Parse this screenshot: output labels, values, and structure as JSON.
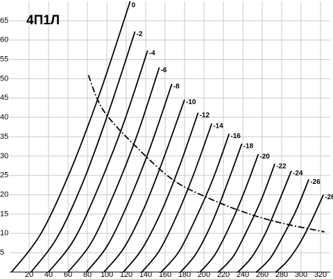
{
  "chart_data": {
    "type": "line",
    "title": "4П1Л",
    "xlim": [
      0,
      330
    ],
    "ylim": [
      0,
      70
    ],
    "xticks": [
      20,
      40,
      60,
      80,
      100,
      120,
      140,
      160,
      180,
      200,
      220,
      240,
      260,
      280,
      300,
      320
    ],
    "yticks": [
      5,
      10,
      15,
      20,
      25,
      30,
      35,
      40,
      45,
      50,
      55,
      60,
      65
    ],
    "grid": true,
    "color": "#000000",
    "series": [
      {
        "name": "0",
        "x": [
          2,
          32.5,
          63,
          93.5,
          124
        ],
        "values": [
          0,
          10.1,
          26.5,
          46.8,
          70
        ]
      },
      {
        "name": "-2",
        "x": [
          22,
          49,
          76,
          102,
          129
        ],
        "values": [
          0,
          9,
          23.6,
          41.5,
          62.2
        ]
      },
      {
        "name": "-4",
        "x": [
          40,
          66,
          91,
          117,
          142
        ],
        "values": [
          0,
          8.3,
          21.7,
          38.3,
          57.3
        ]
      },
      {
        "name": "-6",
        "x": [
          60,
          84,
          107,
          131,
          154
        ],
        "values": [
          0,
          7.6,
          20,
          35.3,
          52.9
        ]
      },
      {
        "name": "-8",
        "x": [
          79,
          101,
          123,
          145,
          167
        ],
        "values": [
          0,
          7,
          18.5,
          32.5,
          48.7
        ]
      },
      {
        "name": "-10",
        "x": [
          97,
          118,
          139,
          159,
          180
        ],
        "values": [
          0,
          6.4,
          16.9,
          29.8,
          44.6
        ]
      },
      {
        "name": "-12",
        "x": [
          117,
          136,
          156,
          175,
          194
        ],
        "values": [
          0,
          5.9,
          15.6,
          27.5,
          41.2
        ]
      },
      {
        "name": "-14",
        "x": [
          136,
          154,
          172,
          190,
          208
        ],
        "values": [
          0,
          5.5,
          14.6,
          25.7,
          38.4
        ]
      },
      {
        "name": "-16",
        "x": [
          156,
          174,
          191,
          209,
          226
        ],
        "values": [
          0,
          5.2,
          13.6,
          23.9,
          35.8
        ]
      },
      {
        "name": "-18",
        "x": [
          176,
          192,
          208,
          223,
          239
        ],
        "values": [
          0,
          4.8,
          12.6,
          22.2,
          33.2
        ]
      },
      {
        "name": "-20",
        "x": [
          196,
          211,
          226,
          241,
          256
        ],
        "values": [
          0,
          4.4,
          11.6,
          20.4,
          30.5
        ]
      },
      {
        "name": "-22",
        "x": [
          215,
          230,
          244,
          259,
          273
        ],
        "values": [
          0,
          4,
          10.6,
          18.7,
          28
        ]
      },
      {
        "name": "-24",
        "x": [
          235,
          249,
          263,
          276,
          290
        ],
        "values": [
          0,
          3.8,
          9.9,
          17.5,
          26.2
        ]
      },
      {
        "name": "-26",
        "x": [
          254,
          268,
          281,
          295,
          308
        ],
        "values": [
          0,
          3.5,
          9.1,
          16,
          24
        ]
      },
      {
        "name": "-28",
        "x": [
          274,
          286,
          299,
          311,
          323
        ],
        "values": [
          0,
          2.9,
          7.6,
          13.4,
          20
        ]
      },
      {
        "style": "dashdot",
        "x": [
          81,
          97,
          133,
          169,
          204,
          240,
          276,
          324
        ],
        "values": [
          50.9,
          41.6,
          31.7,
          23.7,
          19.2,
          15.6,
          12.9,
          10.4
        ]
      }
    ]
  }
}
